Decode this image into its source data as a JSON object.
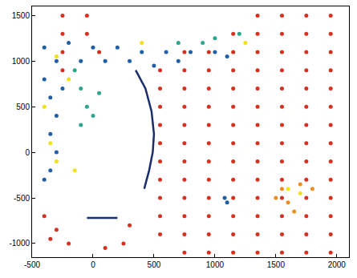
{
  "chart_data": {
    "type": "scatter",
    "xlim": [
      -500,
      2100
    ],
    "ylim": [
      -1150,
      1600
    ],
    "xticks": [
      -500,
      0,
      500,
      1000,
      1500,
      2000
    ],
    "yticks": [
      -1000,
      -500,
      0,
      500,
      1000,
      1500
    ],
    "grid": false,
    "series": [
      {
        "type": "scatter",
        "color": "#d7301f",
        "marker": "circle",
        "x": [
          1350,
          1550,
          1750,
          1950,
          1150,
          1350,
          1550,
          1750,
          1950,
          750,
          950,
          1150,
          1350,
          1550,
          1750,
          1950,
          550,
          750,
          950,
          1150,
          1350,
          1550,
          1750,
          1950,
          550,
          750,
          950,
          1150,
          1350,
          1550,
          1750,
          1950,
          550,
          750,
          950,
          1150,
          1350,
          1550,
          1750,
          1950,
          550,
          750,
          950,
          1150,
          1350,
          1550,
          1750,
          1950,
          550,
          750,
          950,
          1150,
          1350,
          1550,
          1750,
          1950,
          550,
          750,
          950,
          1150,
          1350,
          1550,
          1750,
          1950,
          550,
          750,
          950,
          1150,
          1350,
          1550,
          1750,
          1950,
          550,
          750,
          950,
          1150,
          1350,
          1550,
          1750,
          1950,
          550,
          750,
          950,
          1150,
          1350,
          1550,
          1750,
          1950,
          550,
          750,
          950,
          1150,
          1350,
          1550,
          1750,
          1950,
          750,
          950,
          1150,
          1350,
          1550,
          1750,
          1950,
          -250,
          -250,
          -250,
          -250,
          -50,
          -50,
          50,
          -400,
          -300,
          -200,
          300,
          250,
          100,
          -350
        ],
        "values": [
          1500,
          1500,
          1500,
          1500,
          1300,
          1300,
          1300,
          1300,
          1300,
          1100,
          1100,
          1100,
          1100,
          1100,
          1100,
          1100,
          900,
          900,
          900,
          900,
          900,
          900,
          900,
          900,
          700,
          700,
          700,
          700,
          700,
          700,
          700,
          700,
          500,
          500,
          500,
          500,
          500,
          500,
          500,
          500,
          300,
          300,
          300,
          300,
          300,
          300,
          300,
          300,
          100,
          100,
          100,
          100,
          100,
          100,
          100,
          100,
          -100,
          -100,
          -100,
          -100,
          -100,
          -100,
          -100,
          -100,
          -300,
          -300,
          -300,
          -300,
          -300,
          -300,
          -300,
          -300,
          -500,
          -500,
          -500,
          -500,
          -500,
          -500,
          -500,
          -500,
          -700,
          -700,
          -700,
          -700,
          -700,
          -700,
          -700,
          -700,
          -900,
          -900,
          -900,
          -900,
          -900,
          -900,
          -900,
          -900,
          -1100,
          -1100,
          -1100,
          -1100,
          -1100,
          -1100,
          -1100,
          1500,
          1300,
          1100,
          900,
          1500,
          1300,
          1100,
          -700,
          -850,
          -1000,
          -800,
          -1000,
          -1050,
          -950
        ]
      },
      {
        "type": "scatter",
        "color": "#1f5fa8",
        "marker": "circle",
        "x": [
          -400,
          -200,
          0,
          200,
          400,
          600,
          800,
          1000,
          1100,
          -300,
          -100,
          100,
          300,
          500,
          700,
          -400,
          -350,
          -300,
          -350,
          -300,
          -350,
          -400,
          -250,
          1100,
          1080
        ],
        "values": [
          1150,
          1200,
          1150,
          1150,
          1100,
          1100,
          1100,
          1100,
          1050,
          1000,
          1000,
          1000,
          1000,
          950,
          1000,
          800,
          600,
          400,
          200,
          0,
          -200,
          -300,
          700,
          -550,
          -500
        ]
      },
      {
        "type": "scatter",
        "color": "#2ca58d",
        "marker": "circle",
        "x": [
          -150,
          -100,
          -50,
          -100,
          50,
          0,
          900,
          1000,
          1200,
          700
        ],
        "values": [
          900,
          700,
          500,
          300,
          650,
          400,
          1200,
          1250,
          1300,
          1200
        ]
      },
      {
        "type": "scatter",
        "color": "#f2e01b",
        "marker": "circle",
        "x": [
          -300,
          -200,
          -400,
          -350,
          -300,
          -150,
          1600,
          1700,
          1250,
          400
        ],
        "values": [
          1050,
          800,
          500,
          100,
          -100,
          -200,
          -400,
          -450,
          1200,
          1200
        ]
      },
      {
        "type": "scatter",
        "color": "#f28c1e",
        "marker": "circle",
        "x": [
          1500,
          1600,
          1700,
          1800,
          1650,
          1550
        ],
        "values": [
          -500,
          -550,
          -350,
          -400,
          -650,
          -400
        ]
      },
      {
        "type": "line",
        "color": "#1a2e6e",
        "line_style": "solid",
        "x": [
          350,
          430,
          480,
          500,
          490,
          460,
          420
        ],
        "values": [
          900,
          700,
          450,
          200,
          0,
          -200,
          -400
        ]
      },
      {
        "type": "line",
        "color": "#1a2e6e",
        "line_style": "solid",
        "x": [
          -50,
          200
        ],
        "values": [
          -720,
          -720
        ]
      }
    ]
  }
}
